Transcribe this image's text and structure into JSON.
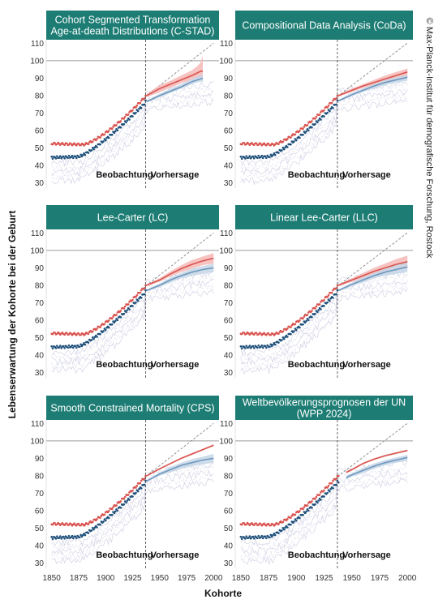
{
  "figure": {
    "y_axis_title": "Lebenserwartung der Kohorte bei der Geburt",
    "x_axis_title": "Kohorte",
    "credit": "© Max-Planck-Institut für demografische Forschung, Rostock",
    "label_observed": "Beobachtung",
    "label_forecast": "Vorhersage",
    "colors": {
      "header": "#1d7d74",
      "female": "#d9534f",
      "female_band": "#f4b9b6",
      "male": "#1d4f7a",
      "male_forecast": "#6f97bd",
      "male_band": "#c4d6e6",
      "country_lines": "#d3d3e6",
      "reference_line": "#9a9a9a",
      "diagonal": "#888888",
      "divider": "#555555"
    }
  },
  "chart_data": [
    {
      "type": "line",
      "title": "Cohort Segmented Transformation Age-at-death Distributions (C-STAD)",
      "title_lines": [
        "Cohort Segmented Transformation",
        "Age-at-death Distributions (C-STAD)"
      ],
      "xlim": [
        1845,
        2005
      ],
      "ylim": [
        27,
        112
      ],
      "xticks": [
        1850,
        1875,
        1900,
        1925,
        1950,
        1975,
        2000
      ],
      "yticks": [
        30,
        40,
        50,
        60,
        70,
        80,
        90,
        100,
        110
      ],
      "reference_y": 100,
      "forecast_start": 1937,
      "forecast_x": [
        1938,
        1950,
        1960,
        1970,
        1980,
        1985,
        1988,
        1990
      ],
      "female_forecast": [
        80,
        84,
        86.5,
        89,
        91.5,
        93,
        94,
        94
      ],
      "female_band_lo": [
        79,
        82,
        84.5,
        87,
        89,
        90,
        90,
        90
      ],
      "female_band_hi": [
        81,
        86,
        88.5,
        91.5,
        94.5,
        97,
        99,
        103
      ],
      "male_forecast": [
        76.5,
        80,
        82.5,
        85,
        88,
        89,
        89.5,
        90
      ],
      "male_band_lo": [
        76,
        79,
        81.5,
        84,
        86.5,
        87.5,
        88,
        88
      ],
      "male_band_hi": [
        77,
        81,
        84,
        86.5,
        89.5,
        91,
        91.5,
        92
      ]
    },
    {
      "type": "line",
      "title": "Compositional Data Analysis (CoDa)",
      "title_lines": [
        "Compositional Data Analysis (CoDa)"
      ],
      "xlim": [
        1845,
        2005
      ],
      "ylim": [
        27,
        112
      ],
      "xticks": [
        1850,
        1875,
        1900,
        1925,
        1950,
        1975,
        2000
      ],
      "yticks": [
        30,
        40,
        50,
        60,
        70,
        80,
        90,
        100,
        110
      ],
      "reference_y": 100,
      "forecast_start": 1937,
      "forecast_x": [
        1938,
        1950,
        1960,
        1970,
        1980,
        1990,
        2000
      ],
      "female_forecast": [
        80,
        83,
        85.5,
        87.5,
        89.5,
        91.5,
        93.5
      ],
      "female_band_lo": [
        79.5,
        82,
        84.5,
        86,
        87.5,
        89,
        90.5
      ],
      "female_band_hi": [
        80.5,
        84,
        86.5,
        89,
        91.5,
        93.5,
        95.5
      ],
      "male_forecast": [
        77,
        80.5,
        83,
        85.5,
        87.5,
        89,
        90.5
      ],
      "male_band_lo": [
        76.5,
        79.5,
        82,
        84,
        86,
        87.5,
        88.5
      ],
      "male_band_hi": [
        77.5,
        81.5,
        84,
        86.5,
        89,
        90.5,
        92
      ]
    },
    {
      "type": "line",
      "title": "Lee-Carter (LC)",
      "title_lines": [
        "Lee-Carter (LC)"
      ],
      "xlim": [
        1845,
        2005
      ],
      "ylim": [
        27,
        112
      ],
      "xticks": [
        1850,
        1875,
        1900,
        1925,
        1950,
        1975,
        2000
      ],
      "yticks": [
        30,
        40,
        50,
        60,
        70,
        80,
        90,
        100,
        110
      ],
      "reference_y": 100,
      "forecast_start": 1937,
      "forecast_x": [
        1938,
        1950,
        1960,
        1970,
        1980,
        1990,
        2000
      ],
      "female_forecast": [
        80,
        83,
        86.5,
        89.5,
        92,
        94,
        95.5
      ],
      "female_band_lo": [
        79.5,
        82,
        85,
        87.5,
        89.5,
        91.5,
        92.5
      ],
      "female_band_hi": [
        80.5,
        84,
        88,
        91.5,
        94.5,
        96.5,
        98.5
      ],
      "male_forecast": [
        77,
        80,
        83,
        85.5,
        87.5,
        89,
        90
      ],
      "male_band_lo": [
        76.5,
        79,
        81.5,
        84,
        85.5,
        86.5,
        87.5
      ],
      "male_band_hi": [
        77.5,
        81,
        84.5,
        87,
        89.5,
        91,
        92.5
      ]
    },
    {
      "type": "line",
      "title": "Linear Lee-Carter (LLC)",
      "title_lines": [
        "Linear Lee-Carter (LLC)"
      ],
      "xlim": [
        1845,
        2005
      ],
      "ylim": [
        27,
        112
      ],
      "xticks": [
        1850,
        1875,
        1900,
        1925,
        1950,
        1975,
        2000
      ],
      "yticks": [
        30,
        40,
        50,
        60,
        70,
        80,
        90,
        100,
        110
      ],
      "reference_y": 100,
      "forecast_start": 1937,
      "forecast_x": [
        1938,
        1950,
        1960,
        1970,
        1980,
        1990,
        2000
      ],
      "female_forecast": [
        80,
        83,
        85.5,
        88,
        90,
        92,
        93.5
      ],
      "female_band_lo": [
        79.5,
        82,
        84,
        86,
        87.5,
        89,
        90
      ],
      "female_band_hi": [
        80.5,
        84,
        87,
        90,
        92.5,
        95,
        97
      ],
      "male_forecast": [
        77,
        80.5,
        83,
        85.5,
        87.5,
        89,
        90.5
      ],
      "male_band_lo": [
        76.5,
        79.5,
        81.5,
        84,
        85.5,
        86.5,
        87.5
      ],
      "male_band_hi": [
        77.5,
        81.5,
        84.5,
        87,
        89.5,
        91.5,
        93.5
      ]
    },
    {
      "type": "line",
      "title": "Smooth Constrained Mortality (CPS)",
      "title_lines": [
        "Smooth Constrained Mortality (CPS)"
      ],
      "xlim": [
        1845,
        2005
      ],
      "ylim": [
        27,
        112
      ],
      "xticks": [
        1850,
        1875,
        1900,
        1925,
        1950,
        1975,
        2000
      ],
      "yticks": [
        30,
        40,
        50,
        60,
        70,
        80,
        90,
        100,
        110
      ],
      "reference_y": 100,
      "forecast_start": 1937,
      "forecast_x": [
        1938,
        1950,
        1960,
        1970,
        1980,
        1990,
        2000
      ],
      "female_forecast": [
        80,
        84,
        87,
        90,
        92.5,
        95,
        97.5
      ],
      "female_band_lo": [
        79.7,
        83.6,
        86.6,
        89.6,
        92,
        94.5,
        97
      ],
      "female_band_hi": [
        80.3,
        84.4,
        87.4,
        90.4,
        93,
        95.5,
        98
      ],
      "male_forecast": [
        77,
        81,
        83.5,
        86,
        87.5,
        89,
        90
      ],
      "male_band_lo": [
        76.5,
        80,
        82,
        84,
        85.5,
        86.5,
        87.5
      ],
      "male_band_hi": [
        77.5,
        82,
        85,
        87.5,
        89.5,
        91,
        92.5
      ]
    },
    {
      "type": "line",
      "title": "Weltbevölkerungsprognosen der UN (WPP 2024)",
      "title_lines": [
        "Weltbevölkerungsprognosen der UN",
        "(WPP 2024)"
      ],
      "xlim": [
        1845,
        2005
      ],
      "ylim": [
        27,
        112
      ],
      "xticks": [
        1850,
        1875,
        1900,
        1925,
        1950,
        1975,
        2000
      ],
      "yticks": [
        30,
        40,
        50,
        60,
        70,
        80,
        90,
        100,
        110
      ],
      "reference_y": 100,
      "forecast_start": 1937,
      "observed_end": 1938,
      "forecast_x": [
        1945,
        1950,
        1960,
        1970,
        1980,
        1990,
        2000
      ],
      "female_forecast": [
        82,
        83.5,
        87,
        89.5,
        91.5,
        93,
        94.5
      ],
      "female_band_lo": [
        81.5,
        83,
        86.5,
        89,
        91,
        92.5,
        94
      ],
      "female_band_hi": [
        82.5,
        84,
        87.5,
        90,
        92,
        93.5,
        95
      ],
      "male_forecast": [
        79,
        80.5,
        83,
        85.5,
        87.5,
        89,
        90.5
      ],
      "male_band_lo": [
        78,
        79.5,
        81.5,
        84,
        86,
        87.5,
        88.5
      ],
      "male_band_hi": [
        80,
        81.5,
        84.5,
        87,
        89,
        90.5,
        92
      ]
    }
  ]
}
